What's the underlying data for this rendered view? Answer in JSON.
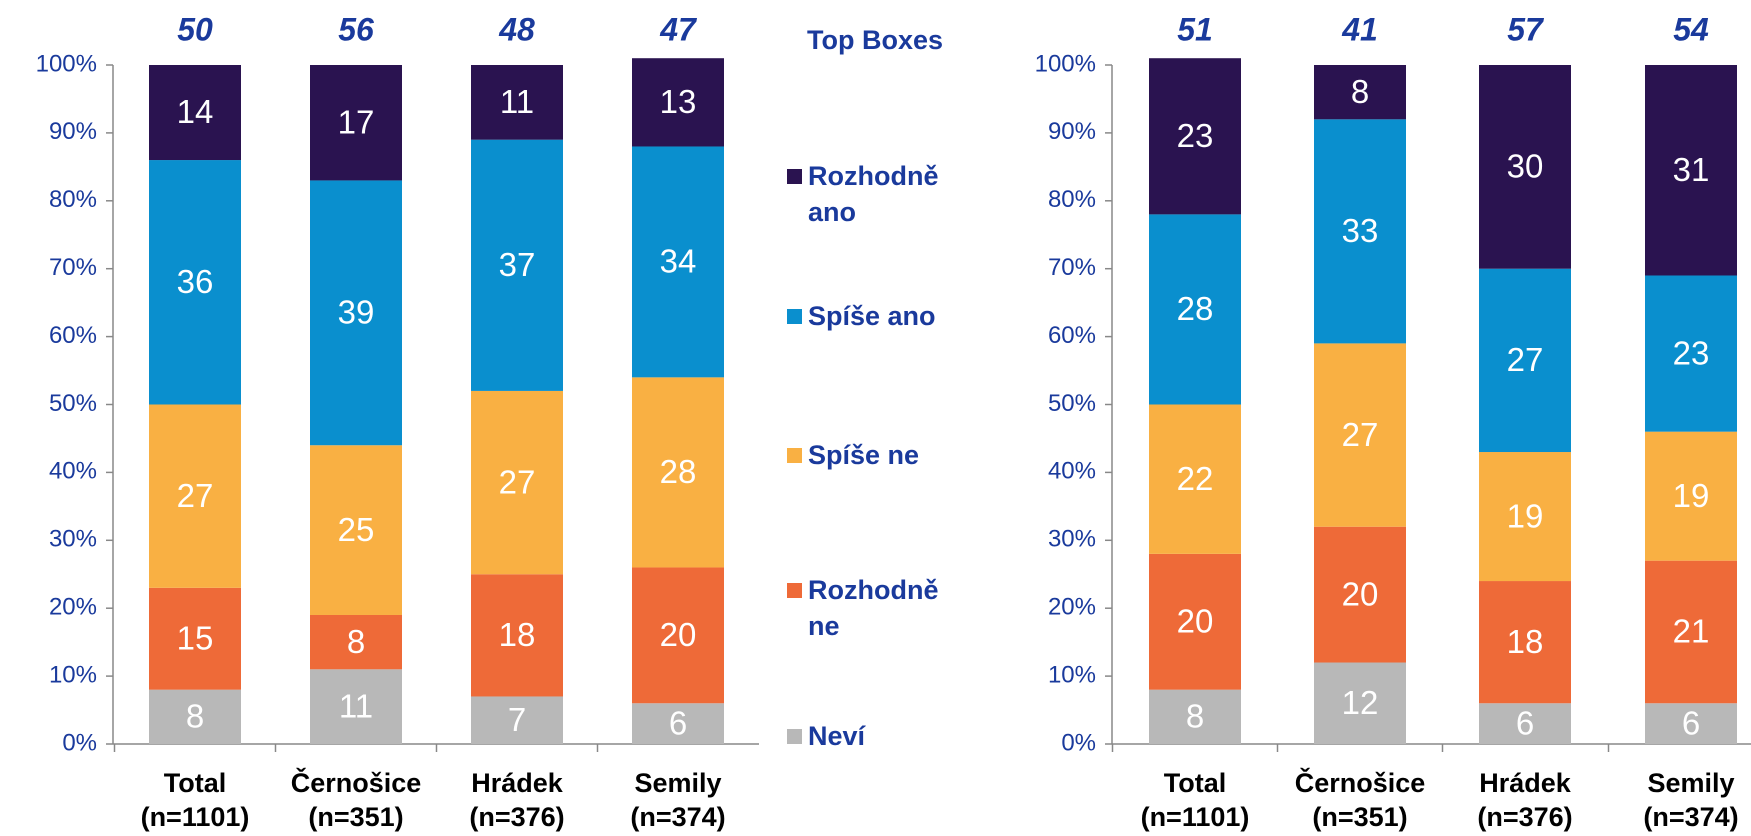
{
  "chart_data": [
    {
      "type": "stacked_bar",
      "legend_title": "Top Boxes",
      "categories": [
        "Total",
        "Černošice",
        "Hrádek",
        "Semily"
      ],
      "sample_sizes": [
        "(n=1101)",
        "(n=351)",
        "(n=376)",
        "(n=374)"
      ],
      "top_boxes": [
        50,
        56,
        48,
        47
      ],
      "ylim": [
        0,
        100
      ],
      "yticks": [
        {
          "value": 0,
          "label": "0%"
        },
        {
          "value": 10,
          "label": "10%"
        },
        {
          "value": 20,
          "label": "20%"
        },
        {
          "value": 30,
          "label": "30%"
        },
        {
          "value": 40,
          "label": "40%"
        },
        {
          "value": 50,
          "label": "50%"
        },
        {
          "value": 60,
          "label": "60%"
        },
        {
          "value": 70,
          "label": "70%"
        },
        {
          "value": 80,
          "label": "80%"
        },
        {
          "value": 90,
          "label": "90%"
        },
        {
          "value": 100,
          "label": "100%"
        }
      ],
      "series": [
        {
          "name": "Neví",
          "color": "#b8b8b8",
          "values": [
            8,
            11,
            7,
            6
          ]
        },
        {
          "name": "Rozhodně ne",
          "color": "#ee6a38",
          "values": [
            15,
            8,
            18,
            20
          ]
        },
        {
          "name": "Spíše ne",
          "color": "#f9b043",
          "values": [
            27,
            25,
            27,
            28
          ]
        },
        {
          "name": "Spíše ano",
          "color": "#0a8fce",
          "values": [
            36,
            39,
            37,
            34
          ]
        },
        {
          "name": "Rozhodně ano",
          "color": "#2a1350",
          "values": [
            14,
            17,
            11,
            13
          ]
        }
      ]
    },
    {
      "type": "stacked_bar",
      "categories": [
        "Total",
        "Černošice",
        "Hrádek",
        "Semily"
      ],
      "sample_sizes": [
        "(n=1101)",
        "(n=351)",
        "(n=376)",
        "(n=374)"
      ],
      "top_boxes": [
        51,
        41,
        57,
        54
      ],
      "ylim": [
        0,
        100
      ],
      "yticks": [
        {
          "value": 0,
          "label": "0%"
        },
        {
          "value": 10,
          "label": "10%"
        },
        {
          "value": 20,
          "label": "20%"
        },
        {
          "value": 30,
          "label": "30%"
        },
        {
          "value": 40,
          "label": "40%"
        },
        {
          "value": 50,
          "label": "50%"
        },
        {
          "value": 60,
          "label": "60%"
        },
        {
          "value": 70,
          "label": "70%"
        },
        {
          "value": 80,
          "label": "80%"
        },
        {
          "value": 90,
          "label": "90%"
        },
        {
          "value": 100,
          "label": "100%"
        }
      ],
      "series": [
        {
          "values": [
            8,
            12,
            6,
            6
          ]
        },
        {
          "values": [
            20,
            20,
            18,
            21
          ]
        },
        {
          "values": [
            22,
            27,
            19,
            19
          ]
        },
        {
          "values": [
            28,
            33,
            27,
            23
          ]
        },
        {
          "values": [
            23,
            8,
            30,
            31
          ]
        }
      ]
    }
  ]
}
